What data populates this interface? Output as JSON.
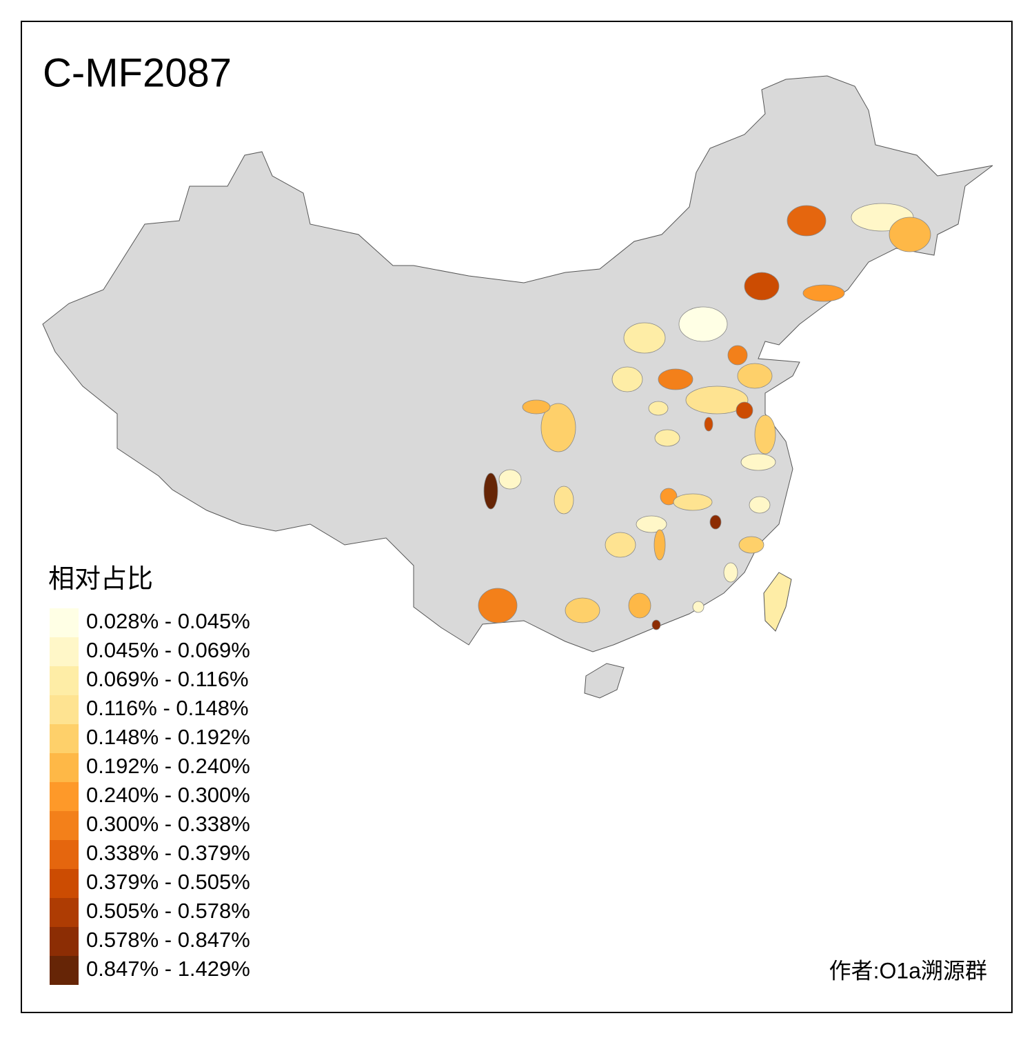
{
  "title": "C-MF2087",
  "legend": {
    "title": "相对占比",
    "items": [
      {
        "label": "0.028% - 0.045%",
        "color": "#ffffe5"
      },
      {
        "label": "0.045% - 0.069%",
        "color": "#fff7c8"
      },
      {
        "label": "0.069% - 0.116%",
        "color": "#feeda6"
      },
      {
        "label": "0.116% - 0.148%",
        "color": "#fee391"
      },
      {
        "label": "0.148% - 0.192%",
        "color": "#fed06a"
      },
      {
        "label": "0.192% - 0.240%",
        "color": "#feb847"
      },
      {
        "label": "0.240% - 0.300%",
        "color": "#fe9929"
      },
      {
        "label": "0.300% - 0.338%",
        "color": "#f3801a"
      },
      {
        "label": "0.338% - 0.379%",
        "color": "#e5660e"
      },
      {
        "label": "0.379% - 0.505%",
        "color": "#cc4c02"
      },
      {
        "label": "0.505% - 0.578%",
        "color": "#ae3c03"
      },
      {
        "label": "0.578% - 0.847%",
        "color": "#8c2d04"
      },
      {
        "label": "0.847% - 1.429%",
        "color": "#662506"
      }
    ]
  },
  "credit": "作者:O1a溯源群"
}
